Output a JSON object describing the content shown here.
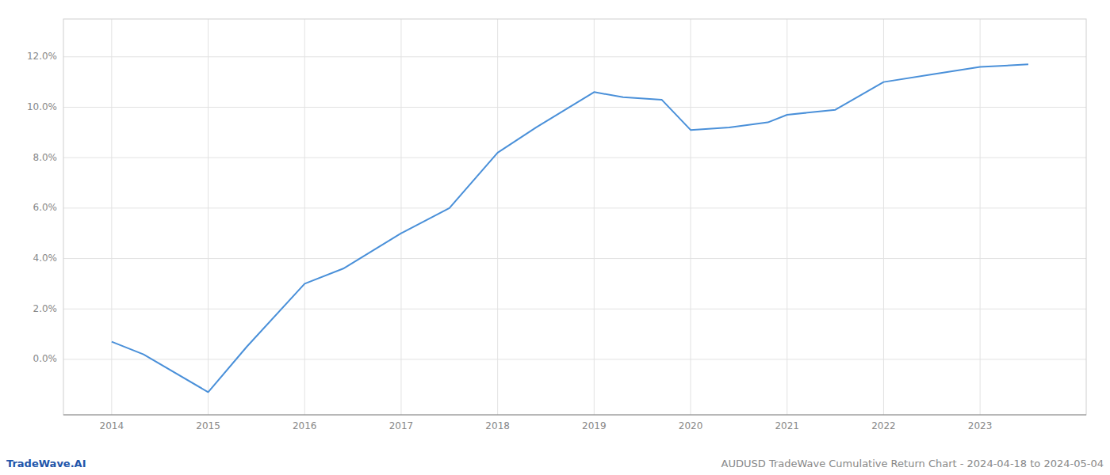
{
  "chart_data": {
    "type": "line",
    "title": "AUDUSD TradeWave Cumulative Return Chart - 2024-04-18 to 2024-05-04",
    "annotations": [
      "TradeWave.AI"
    ],
    "x": [
      2014,
      2014.33,
      2015,
      2015.4,
      2016,
      2016.4,
      2017,
      2017.5,
      2018,
      2018.4,
      2019,
      2019.3,
      2019.7,
      2020,
      2020.4,
      2020.8,
      2021,
      2021.5,
      2022,
      2022.5,
      2023,
      2023.5
    ],
    "values": [
      0.007,
      0.002,
      -0.013,
      0.005,
      0.03,
      0.036,
      0.05,
      0.06,
      0.082,
      0.092,
      0.106,
      0.104,
      0.103,
      0.091,
      0.092,
      0.094,
      0.097,
      0.099,
      0.11,
      0.113,
      0.116,
      0.117
    ],
    "color": "#4a90d9",
    "xlim": [
      2013.5,
      2024.1
    ],
    "ylim": [
      -0.022,
      0.135
    ],
    "xticks": [
      2014,
      2015,
      2016,
      2017,
      2018,
      2019,
      2020,
      2021,
      2022,
      2023
    ],
    "yticks": [
      {
        "value": 0.0,
        "label": "0.0%"
      },
      {
        "value": 0.02,
        "label": "2.0%"
      },
      {
        "value": 0.04,
        "label": "4.0%"
      },
      {
        "value": 0.06,
        "label": "6.0%"
      },
      {
        "value": 0.08,
        "label": "8.0%"
      },
      {
        "value": 0.1,
        "label": "10.0%"
      },
      {
        "value": 0.12,
        "label": "12.0%"
      }
    ],
    "grid": true
  }
}
